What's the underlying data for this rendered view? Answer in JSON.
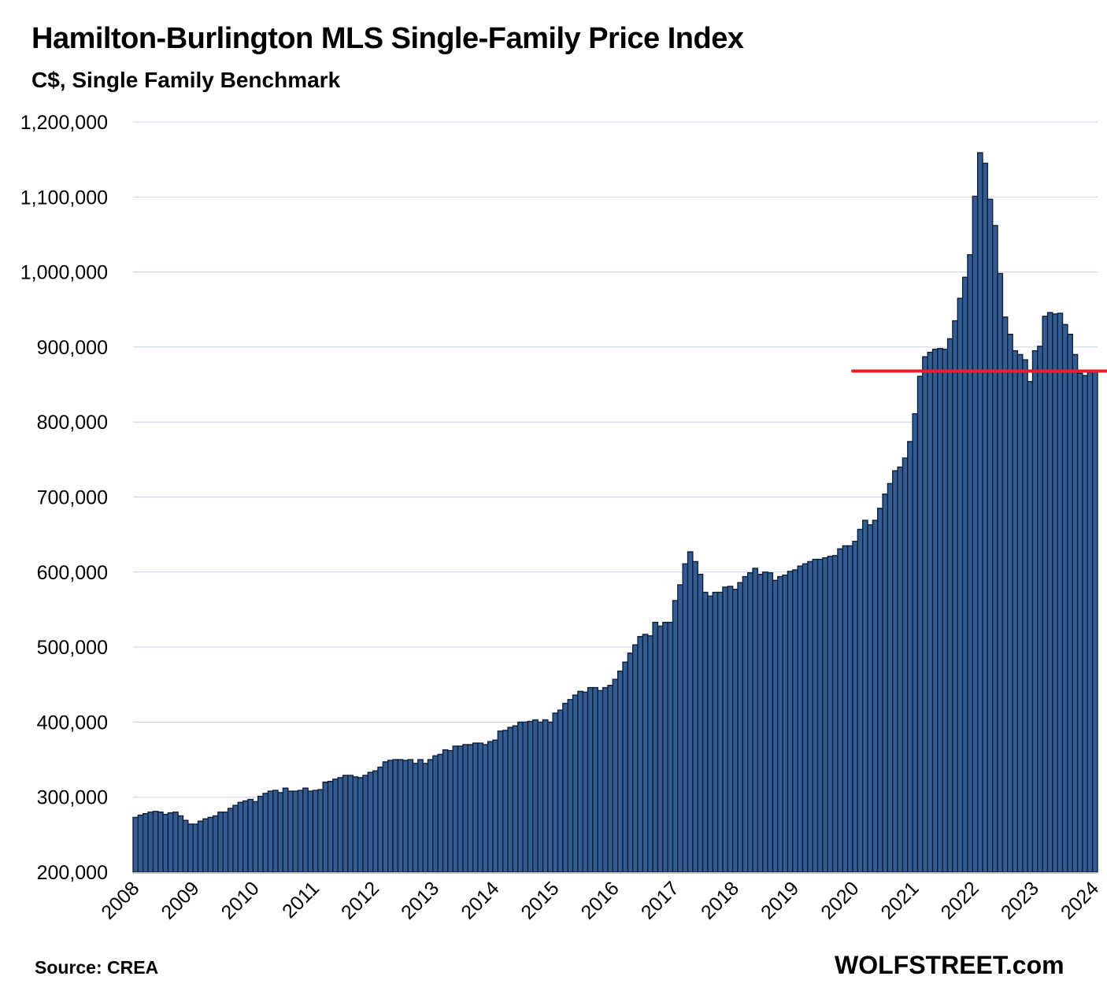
{
  "header": {
    "title": "Hamilton-Burlington MLS Single-Family Price Index",
    "subtitle": "C$, Single Family Benchmark"
  },
  "footer": {
    "source": "Source: CREA",
    "brand": "WOLFSTREET.com"
  },
  "colors": {
    "bar_fill": "#335C92",
    "bar_stroke": "#0F1F38",
    "gridline": "#C5D3E0",
    "reference_line": "#E8202A"
  },
  "chart_data": {
    "type": "bar",
    "title": "Hamilton-Burlington MLS Single-Family Price Index",
    "subtitle": "C$, Single Family Benchmark",
    "xlabel": "",
    "ylabel": "",
    "ylim": [
      200000,
      1200000
    ],
    "yticks": [
      200000,
      300000,
      400000,
      500000,
      600000,
      700000,
      800000,
      900000,
      1000000,
      1100000,
      1200000
    ],
    "ytick_labels": [
      "200,000",
      "300,000",
      "400,000",
      "500,000",
      "600,000",
      "700,000",
      "800,000",
      "900,000",
      "1,000,000",
      "1,100,000",
      "1,200,000"
    ],
    "xtick_labels": [
      "2008",
      "2009",
      "2010",
      "2011",
      "2012",
      "2013",
      "2014",
      "2015",
      "2016",
      "2017",
      "2018",
      "2019",
      "2020",
      "2021",
      "2022",
      "2023",
      "2024"
    ],
    "grid": true,
    "frequency": "monthly",
    "start": "2008-01",
    "end": "2024-01",
    "values": [
      273000,
      276000,
      278000,
      280000,
      281000,
      280000,
      277000,
      279000,
      280000,
      275000,
      269000,
      264000,
      264000,
      268000,
      271000,
      273000,
      275000,
      280000,
      280000,
      285000,
      289000,
      293000,
      295000,
      297000,
      294000,
      301000,
      305000,
      308000,
      309000,
      306000,
      312000,
      308000,
      308000,
      309000,
      312000,
      308000,
      309000,
      310000,
      320000,
      321000,
      324000,
      326000,
      329000,
      329000,
      327000,
      326000,
      329000,
      333000,
      335000,
      340000,
      347000,
      349000,
      350000,
      350000,
      349000,
      350000,
      345000,
      350000,
      345000,
      350000,
      355000,
      357000,
      363000,
      362000,
      368000,
      368000,
      370000,
      370000,
      372000,
      372000,
      370000,
      374000,
      376000,
      388000,
      389000,
      393000,
      395000,
      400000,
      400000,
      401000,
      403000,
      400000,
      403000,
      400000,
      412000,
      416000,
      425000,
      430000,
      436000,
      441000,
      440000,
      446000,
      446000,
      442000,
      446000,
      449000,
      457000,
      468000,
      480000,
      492000,
      503000,
      514000,
      517000,
      515000,
      533000,
      528000,
      533000,
      533000,
      562000,
      583000,
      611000,
      627000,
      614000,
      597000,
      573000,
      568000,
      573000,
      573000,
      580000,
      581000,
      577000,
      586000,
      594000,
      599000,
      605000,
      597000,
      600000,
      599000,
      589000,
      594000,
      596000,
      601000,
      603000,
      608000,
      611000,
      614000,
      617000,
      617000,
      619000,
      621000,
      622000,
      631000,
      635000,
      635000,
      641000,
      657000,
      669000,
      663000,
      669000,
      685000,
      704000,
      718000,
      735000,
      740000,
      752000,
      774000,
      811000,
      861000,
      887000,
      893000,
      897000,
      898000,
      897000,
      911000,
      935000,
      965000,
      993000,
      1023000,
      1101000,
      1159000,
      1145000,
      1097000,
      1062000,
      998000,
      940000,
      917000,
      895000,
      890000,
      883000,
      854000,
      895000,
      901000,
      941000,
      946000,
      944000,
      945000,
      930000,
      917000,
      890000,
      865000,
      862000,
      868000,
      868000
    ],
    "annotations": [
      {
        "type": "horizontal-line",
        "value": 868000,
        "from": "2020-01",
        "to": "2024-01",
        "color": "#E8202A"
      }
    ],
    "source": "Source: CREA",
    "credit": "WOLFSTREET.com"
  }
}
